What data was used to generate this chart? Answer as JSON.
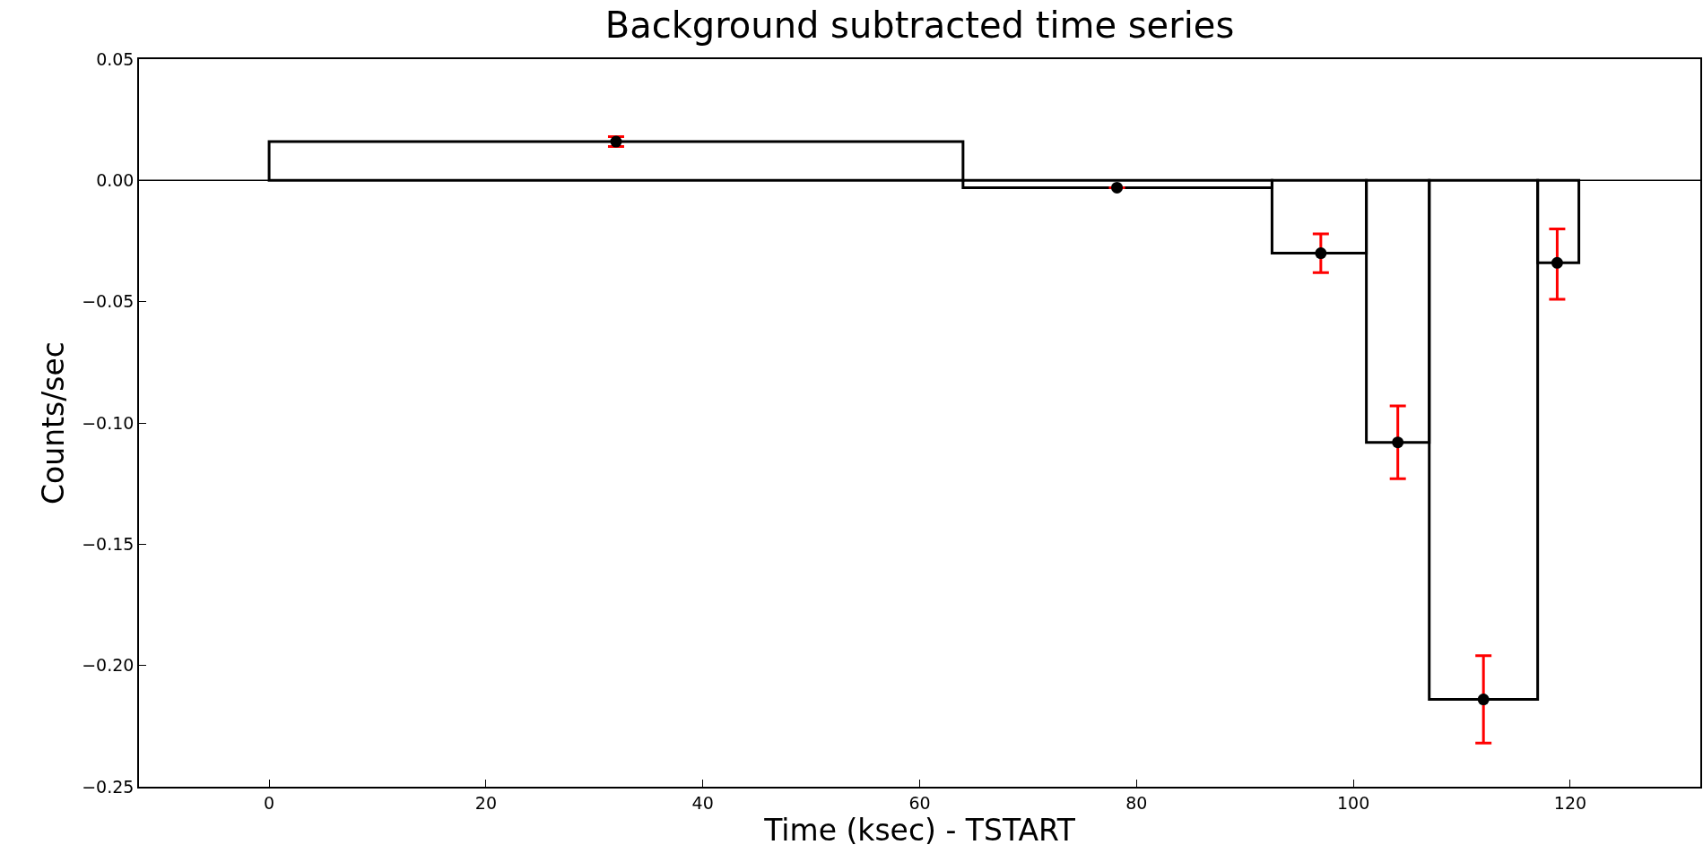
{
  "chart_data": {
    "type": "histogram",
    "title": "Background subtracted time series",
    "xlabel": "Time (ksec) - TSTART",
    "ylabel": "Counts/sec",
    "series": [
      {
        "bins": [
          0,
          64,
          92.5,
          101.2,
          107,
          117,
          120.8
        ],
        "values": [
          0.016,
          -0.003,
          -0.03,
          -0.108,
          -0.214,
          -0.034
        ],
        "color": "#000000"
      },
      {
        "type": "scatter",
        "x": [
          32,
          78.2,
          97,
          104.1,
          112,
          118.8
        ],
        "values": [
          0.016,
          -0.003,
          -0.03,
          -0.108,
          -0.214,
          -0.034
        ],
        "errors": [
          [
            0.014,
            0.018
          ],
          null,
          [
            -0.038,
            -0.022
          ],
          [
            -0.123,
            -0.093
          ],
          [
            -0.232,
            -0.196
          ],
          [
            -0.049,
            -0.02
          ]
        ],
        "color": "#000000"
      }
    ],
    "marker": "circle",
    "ref_lines": [
      {
        "axis": "y",
        "value": 0,
        "color": "#000000"
      }
    ],
    "xlim": [
      -12,
      132
    ],
    "xticks": [
      0,
      20,
      40,
      60,
      80,
      100,
      120
    ],
    "ylim": [
      -0.25,
      0.05
    ],
    "yticks": [
      {
        "value": -0.25,
        "label": "−0.25"
      },
      {
        "value": -0.2,
        "label": "−0.20"
      },
      {
        "value": -0.15,
        "label": "−0.15"
      },
      {
        "value": -0.1,
        "label": "−0.10"
      },
      {
        "value": -0.05,
        "label": "−0.05"
      },
      {
        "value": 0,
        "label": "0.00"
      },
      {
        "value": 0.05,
        "label": "0.05"
      }
    ],
    "grid": false,
    "legend": false
  }
}
